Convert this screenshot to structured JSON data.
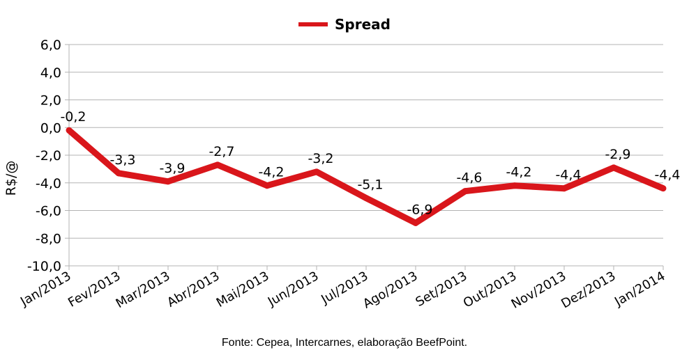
{
  "chart_data": {
    "type": "line",
    "categories": [
      "Jan/2013",
      "Fev/2013",
      "Mar/2013",
      "Abr/2013",
      "Mai/2013",
      "Jun/2013",
      "Jul/2013",
      "Ago/2013",
      "Set/2013",
      "Out/2013",
      "Nov/2013",
      "Dez/2013",
      "Jan/2014"
    ],
    "series": [
      {
        "name": "Spread",
        "values": [
          -0.2,
          -3.3,
          -3.9,
          -2.7,
          -4.2,
          -3.2,
          -5.1,
          -6.9,
          -4.6,
          -4.2,
          -4.4,
          -2.9,
          -4.4
        ],
        "labels": [
          "-0,2",
          "-3,3",
          "-3,9",
          "-2,7",
          "-4,2",
          "-3,2",
          "-5,1",
          "-6,9",
          "-4,6",
          "-4,2",
          "-4,4",
          "-2,9",
          "-4,4"
        ],
        "color": "#d9161b"
      }
    ],
    "ylabel": "R$/@",
    "xlabel": "",
    "ylim": [
      -10,
      6
    ],
    "yticks": [
      6,
      4,
      2,
      0,
      -2,
      -4,
      -6,
      -8,
      -10
    ],
    "ytick_labels": [
      "6,0",
      "4,0",
      "2,0",
      "0,0",
      "-2,0",
      "-4,0",
      "-6,0",
      "-8,0",
      "-10,0"
    ],
    "grid": true,
    "legend_position": "top-center"
  },
  "source_note": "Fonte: Cepea, Intercarnes, elaboração BeefPoint."
}
